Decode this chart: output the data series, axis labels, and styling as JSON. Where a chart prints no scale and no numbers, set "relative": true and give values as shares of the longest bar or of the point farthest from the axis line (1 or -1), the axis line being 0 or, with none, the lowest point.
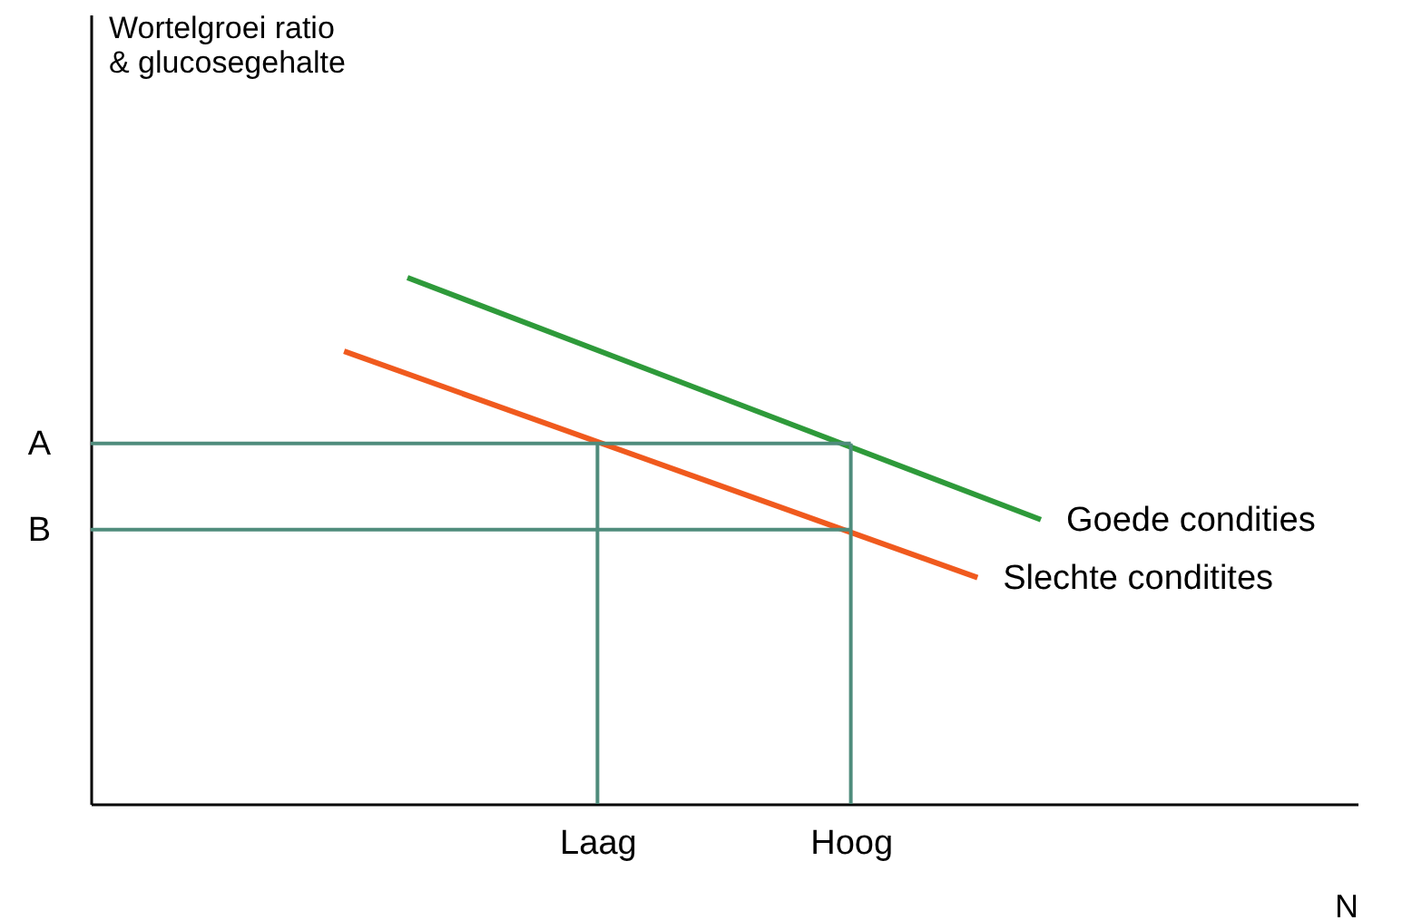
{
  "chart_data": {
    "type": "line",
    "relative": true,
    "xlabel": "N",
    "annotations": [
      "Wortelgroei ratio\n& glucosegehalte"
    ],
    "categories": [
      null,
      null,
      null,
      null,
      null,
      null,
      null,
      null,
      "Laag",
      null,
      null,
      null,
      "Hoog",
      null,
      null,
      null,
      null,
      null,
      null,
      null,
      null
    ],
    "series": [
      {
        "name": "Goede condities",
        "color": "#2e9a3a",
        "values": [
          null,
          null,
          null,
          null,
          null,
          1,
          null,
          null,
          null,
          null,
          null,
          null,
          null,
          null,
          null,
          0.54,
          null,
          null,
          null,
          null,
          null
        ]
      },
      {
        "name": "Slechte conditites",
        "color": "#f05a1e",
        "values": [
          null,
          null,
          null,
          null,
          0.86,
          null,
          null,
          null,
          null,
          null,
          null,
          null,
          null,
          null,
          0.43,
          null,
          null,
          null,
          null,
          null,
          null
        ]
      }
    ],
    "ref_lines": [
      {
        "axis": "y",
        "value": 0.685,
        "label": "A",
        "color": "#4f8c7c"
      },
      {
        "axis": "y",
        "value": 0.521,
        "label": "B",
        "color": "#4f8c7c"
      },
      {
        "axis": "x",
        "value": "Laag",
        "color": "#4f8c7c"
      },
      {
        "axis": "x",
        "value": "Hoog",
        "color": "#4f8c7c"
      }
    ]
  }
}
